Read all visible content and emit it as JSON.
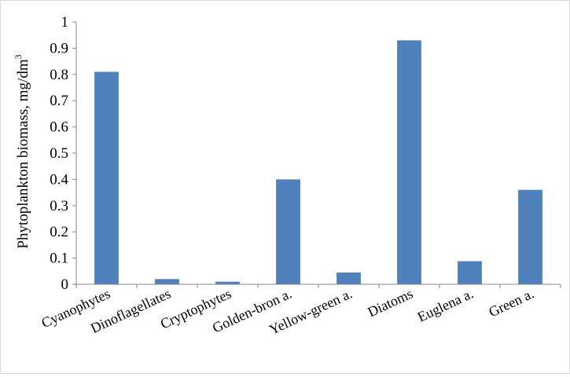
{
  "chart_data": {
    "type": "bar",
    "title": "",
    "xlabel": "",
    "ylabel": "Phytoplankton biomass, mg/dm",
    "ylabel_superscript": "3",
    "categories": [
      "Cyanophytes",
      "Dinoflagellates",
      "Cryptophytes",
      "Golden-bron a.",
      "Yellow-green a.",
      "Diatoms",
      "Euglena a.",
      "Green a."
    ],
    "values": [
      0.81,
      0.02,
      0.01,
      0.4,
      0.045,
      0.93,
      0.088,
      0.36
    ],
    "ylim": [
      0,
      1
    ],
    "yticks": [
      "0",
      "0.1",
      "0.2",
      "0.3",
      "0.4",
      "0.5",
      "0.6",
      "0.7",
      "0.8",
      "0.9",
      "1"
    ],
    "grid": false,
    "legend": "none",
    "bar_color": "#4f81bd"
  }
}
